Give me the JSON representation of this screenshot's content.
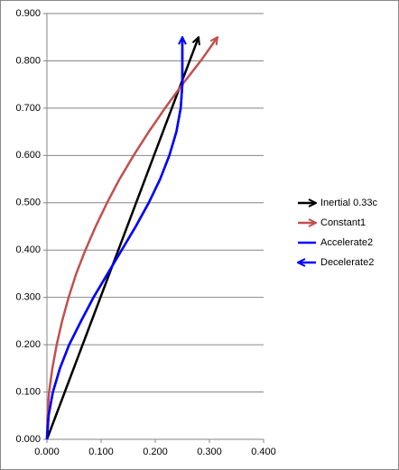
{
  "chart_data": {
    "type": "line",
    "xlim": [
      0,
      0.4
    ],
    "ylim": [
      0,
      0.9
    ],
    "xticks": [
      {
        "value": 0,
        "label": "0.000"
      },
      {
        "value": 0.1,
        "label": "0.100"
      },
      {
        "value": 0.2,
        "label": "0.200"
      },
      {
        "value": 0.3,
        "label": "0.300"
      },
      {
        "value": 0.4,
        "label": "0.400"
      }
    ],
    "yticks": [
      {
        "value": 0,
        "label": "0.000"
      },
      {
        "value": 0.1,
        "label": "0.100"
      },
      {
        "value": 0.2,
        "label": "0.200"
      },
      {
        "value": 0.3,
        "label": "0.300"
      },
      {
        "value": 0.4,
        "label": "0.400"
      },
      {
        "value": 0.5,
        "label": "0.500"
      },
      {
        "value": 0.6,
        "label": "0.600"
      },
      {
        "value": 0.7,
        "label": "0.700"
      },
      {
        "value": 0.8,
        "label": "0.800"
      },
      {
        "value": 0.9,
        "label": "0.900"
      }
    ],
    "grid": true,
    "legend": "right",
    "series": [
      {
        "name": "Inertial 0.33c",
        "color": "#000000",
        "marker": "end",
        "x": [
          0,
          0.28
        ],
        "values": [
          0,
          0.85
        ]
      },
      {
        "name": "Constant1",
        "color": "#c0504d",
        "marker": "end",
        "x": [
          0,
          0.001,
          0.004,
          0.01,
          0.018,
          0.028,
          0.04,
          0.054,
          0.071,
          0.09,
          0.111,
          0.134,
          0.16,
          0.188,
          0.218,
          0.25,
          0.284,
          0.315
        ],
        "values": [
          0,
          0.05,
          0.1,
          0.15,
          0.2,
          0.25,
          0.3,
          0.35,
          0.4,
          0.45,
          0.5,
          0.55,
          0.6,
          0.65,
          0.7,
          0.75,
          0.8,
          0.85
        ]
      },
      {
        "name": "Accelerate2",
        "color": "#0000ff",
        "marker": "none",
        "x": [
          0,
          0.003,
          0.011,
          0.024,
          0.041,
          0.063,
          0.086,
          0.112,
          0.138,
          0.164,
          0.188,
          0.209,
          0.226,
          0.239,
          0.247,
          0.25,
          0.25,
          0.25
        ],
        "values": [
          0,
          0.05,
          0.1,
          0.15,
          0.2,
          0.25,
          0.3,
          0.35,
          0.4,
          0.45,
          0.5,
          0.55,
          0.6,
          0.65,
          0.7,
          0.75,
          0.8,
          0.85
        ]
      },
      {
        "name": "Decelerate2",
        "color": "#0000ff",
        "marker": "start",
        "x": [
          0.25,
          0.25,
          0.25,
          0.247,
          0.239,
          0.226,
          0.209,
          0.188,
          0.164,
          0.138,
          0.112,
          0.086,
          0.063,
          0.041,
          0.024,
          0.011,
          0.003,
          0
        ],
        "values": [
          0.85,
          0.8,
          0.75,
          0.7,
          0.65,
          0.6,
          0.55,
          0.5,
          0.45,
          0.4,
          0.35,
          0.3,
          0.25,
          0.2,
          0.15,
          0.1,
          0.05,
          0
        ]
      }
    ]
  }
}
